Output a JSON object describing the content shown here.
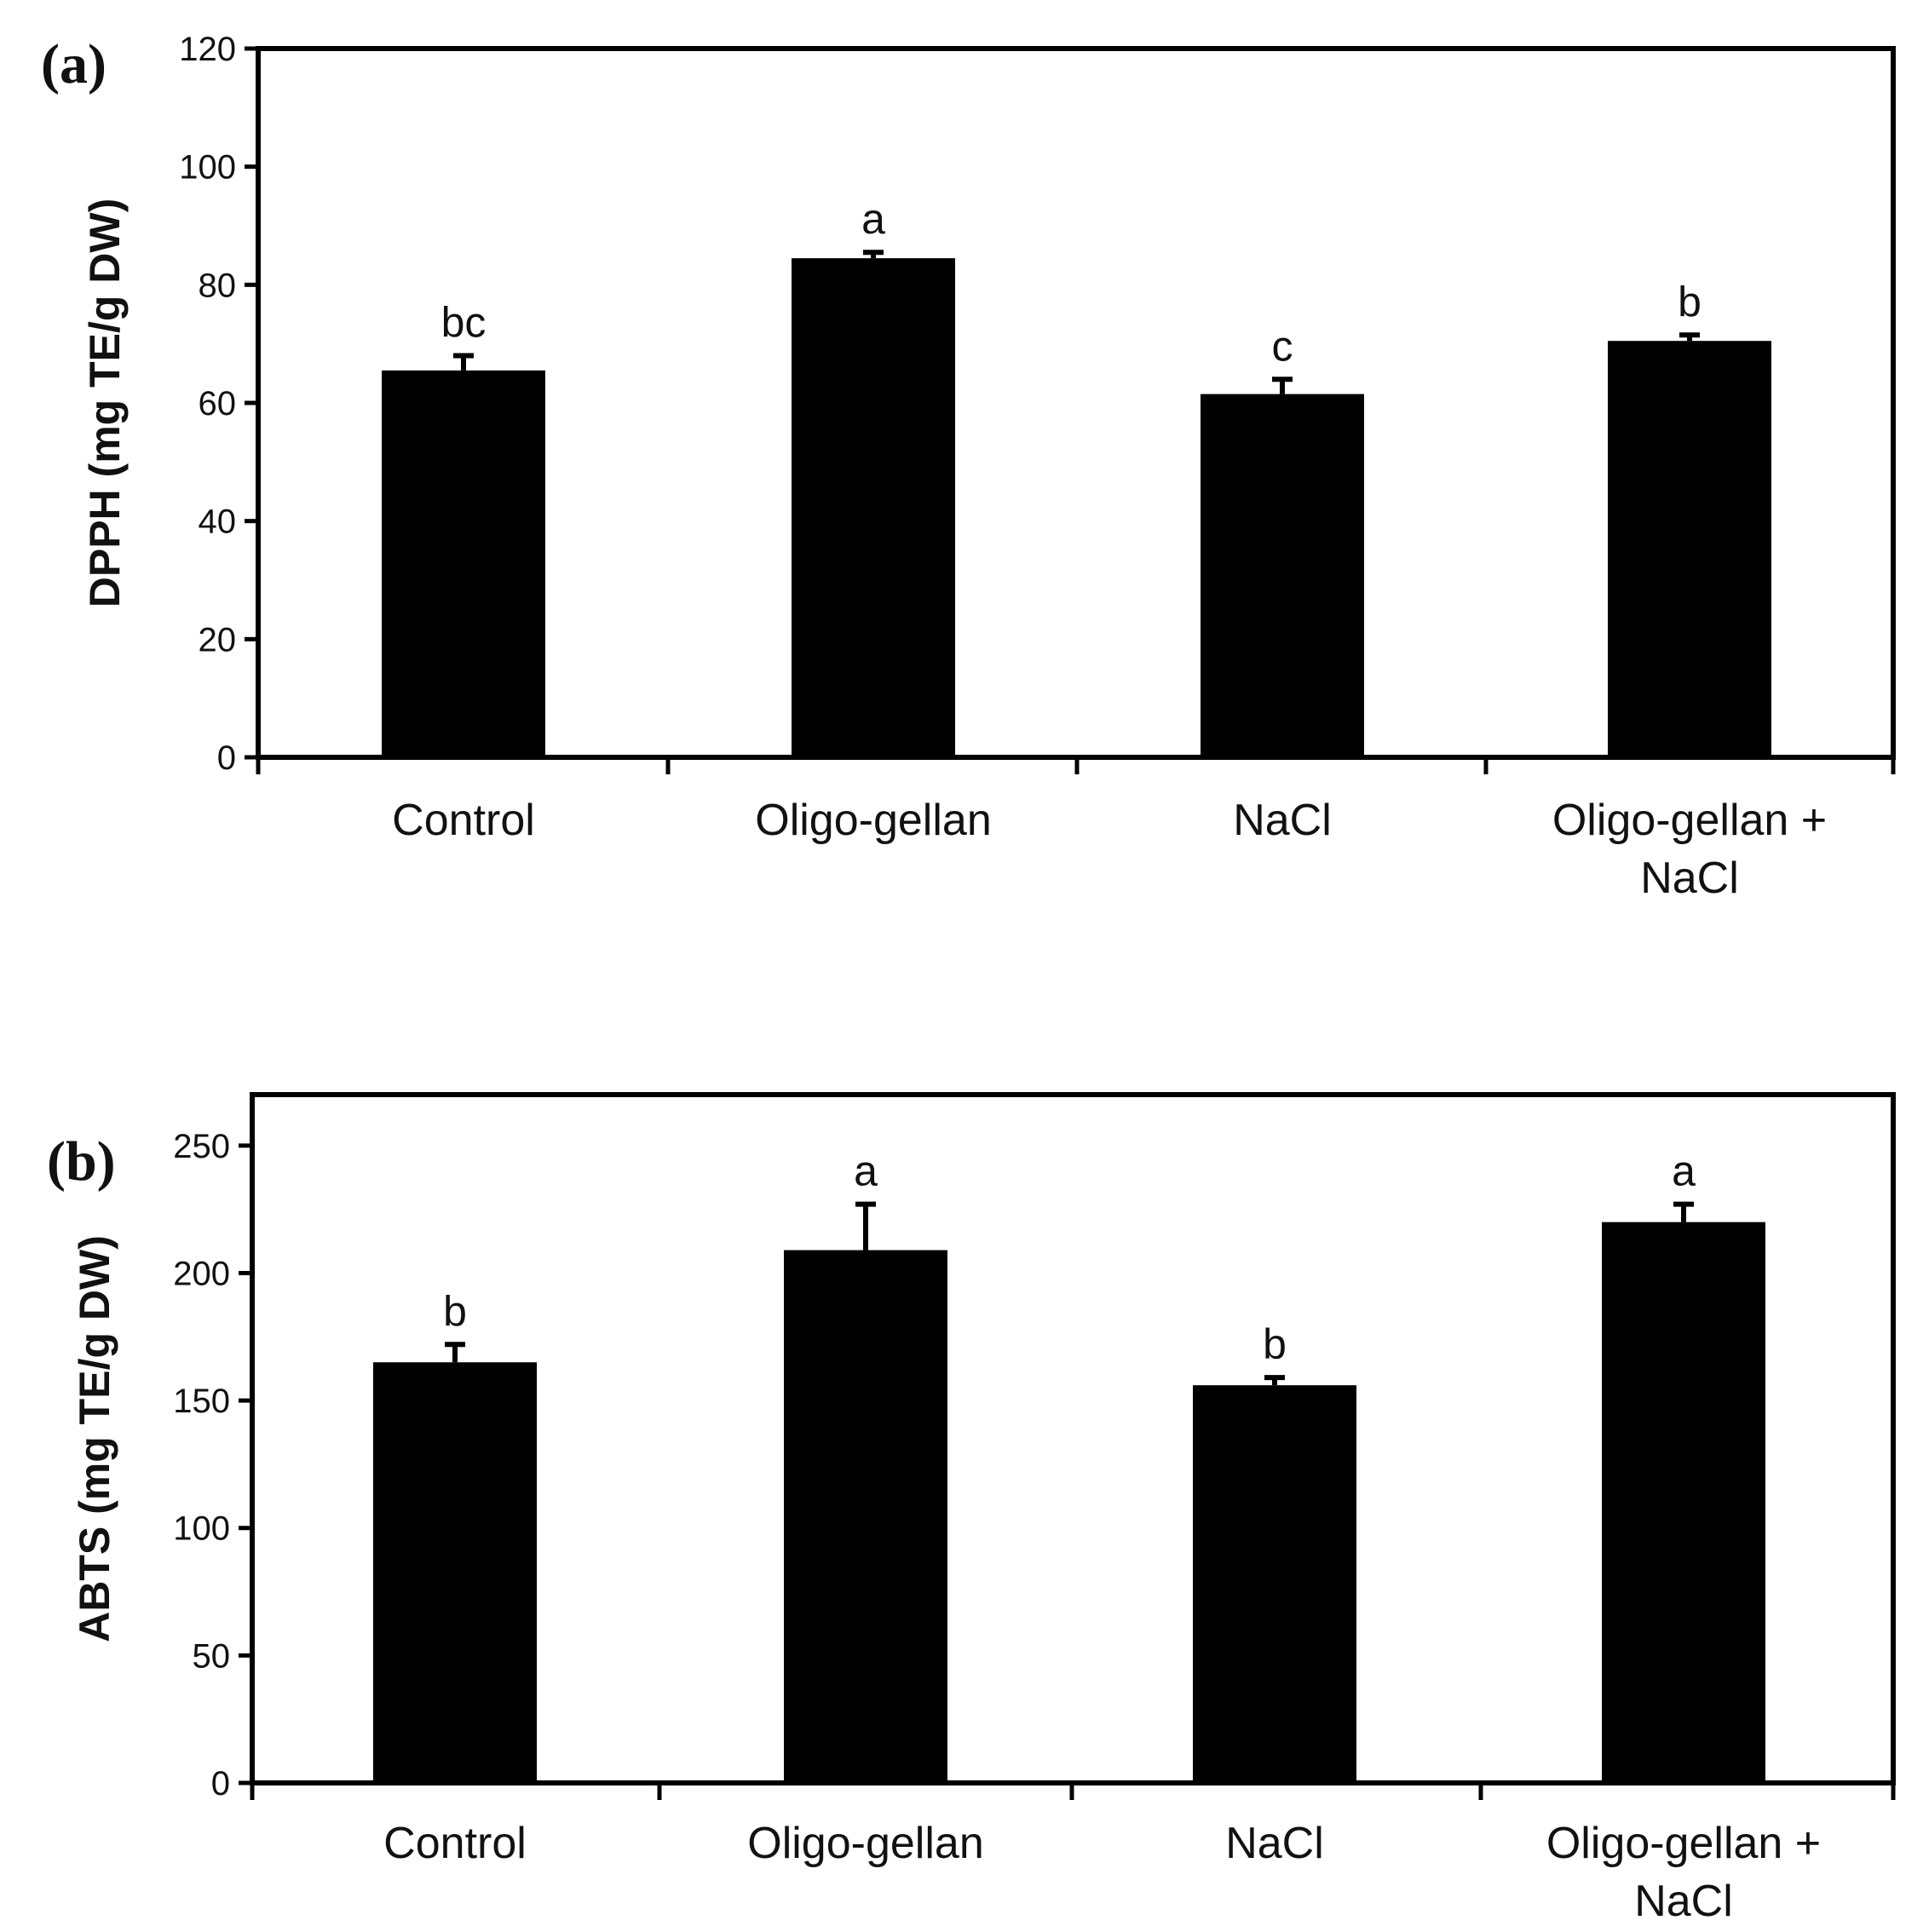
{
  "chart_data": [
    {
      "type": "bar",
      "panel_label": "(a)",
      "ylabel": "DPPH (mg TE/g DW)",
      "ylim": [
        0,
        120
      ],
      "yticks": [
        0,
        20,
        40,
        60,
        80,
        100,
        120
      ],
      "categories": [
        [
          "Control"
        ],
        [
          "Oligo-gellan"
        ],
        [
          "NaCl"
        ],
        [
          "Oligo-gellan +",
          "NaCl"
        ]
      ],
      "values": [
        65.5,
        84.5,
        61.5,
        70.5
      ],
      "errors": [
        2.5,
        1.0,
        2.5,
        1.0
      ],
      "significance": [
        "bc",
        "a",
        "c",
        "b"
      ],
      "bar_color": "#000000"
    },
    {
      "type": "bar",
      "panel_label": "(b)",
      "ylabel": "ABTS (mg TE/g DW)",
      "ylim": [
        0,
        270
      ],
      "yticks": [
        0,
        50,
        100,
        150,
        200,
        250
      ],
      "categories": [
        [
          "Control"
        ],
        [
          "Oligo-gellan"
        ],
        [
          "NaCl"
        ],
        [
          "Oligo-gellan +",
          "NaCl"
        ]
      ],
      "values": [
        165,
        209,
        156,
        220
      ],
      "errors": [
        7,
        18,
        3,
        7
      ],
      "significance": [
        "b",
        "a",
        "b",
        "a"
      ],
      "bar_color": "#000000"
    }
  ]
}
